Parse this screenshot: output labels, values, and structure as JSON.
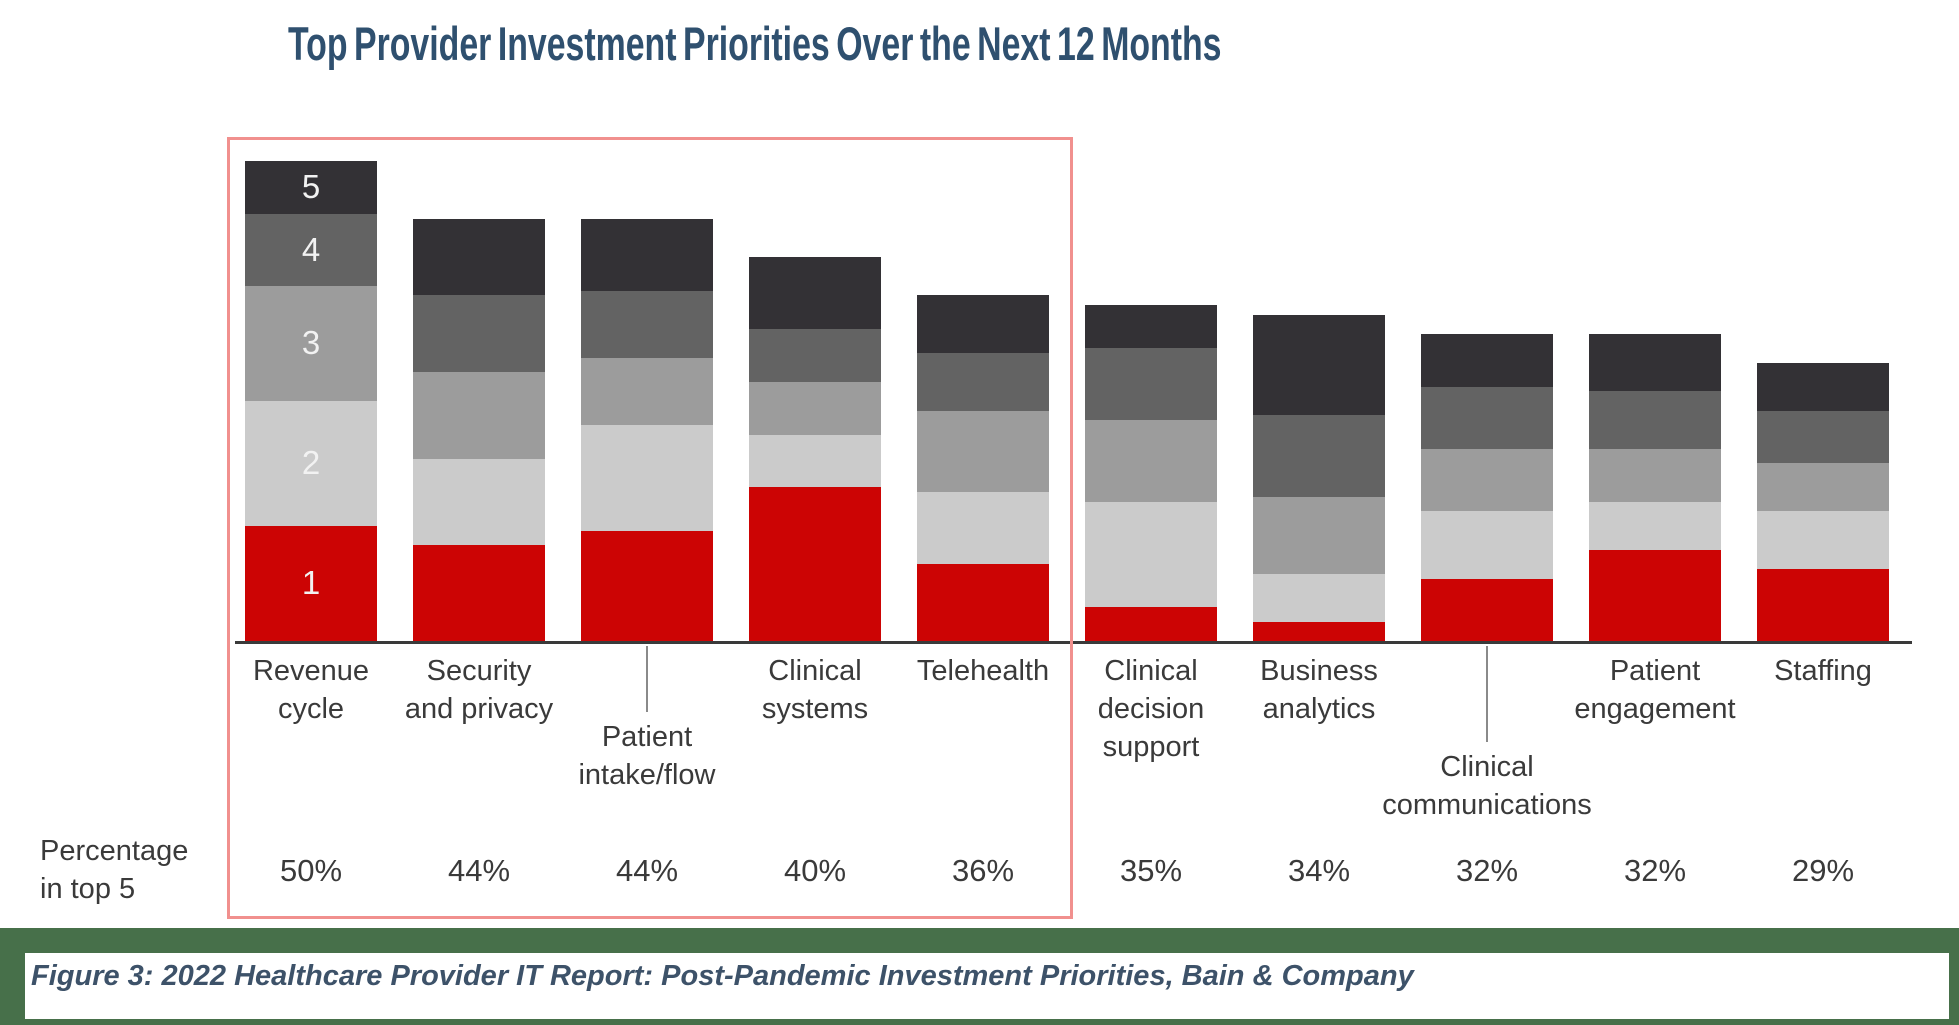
{
  "title": "Top Provider Investment Priorities Over the Next 12 Months",
  "caption": "Figure 3:  2022 Healthcare Provider IT Report: Post-Pandemic Investment Priorities, Bain & Company",
  "row_label": {
    "line1": "Percentage",
    "line2": "in top 5"
  },
  "colors": {
    "title_blue": "#2F506F",
    "caption_blue": "#3D5269",
    "footer_green": "#47704A",
    "box_pink": "#F1908E",
    "axis_gray": "#3A3A3A",
    "text_gray": "#3A3A3A",
    "rank1_red": "#CC0404",
    "rank2_light_gray": "#CBCBCB",
    "rank3_mid_gray": "#9C9C9C",
    "rank4_dark_gray": "#636363",
    "rank5_charcoal": "#333135"
  },
  "chart_data": {
    "type": "bar",
    "stacked": true,
    "title": "Top Provider Investment Priorities Over the Next 12 Months",
    "unit": "percent of respondents ranking item in their top 5 (segments = rank 1 at bottom through rank 5 at top)",
    "legend_position": "in-bar numbers on first column (1-5)",
    "grid": false,
    "categories": [
      "Revenue cycle",
      "Security and privacy",
      "Patient intake/flow",
      "Clinical systems",
      "Telehealth",
      "Clinical decision support",
      "Business analytics",
      "Clinical communications",
      "Patient engagement",
      "Staffing"
    ],
    "totals_pct": [
      50,
      44,
      44,
      40,
      36,
      35,
      34,
      32,
      32,
      29
    ],
    "totals_labels": [
      "50%",
      "44%",
      "44%",
      "40%",
      "36%",
      "35%",
      "34%",
      "32%",
      "32%",
      "29%"
    ],
    "series": [
      {
        "name": "Ranked 1 (top priority)",
        "color": "#CC0404",
        "values": [
          12,
          10,
          11.5,
          16,
          8,
          3.5,
          2,
          6.5,
          9.5,
          7.5
        ]
      },
      {
        "name": "Ranked 2",
        "color": "#CBCBCB",
        "values": [
          13,
          9,
          11,
          5.5,
          7.5,
          11,
          5,
          7,
          5,
          6
        ]
      },
      {
        "name": "Ranked 3",
        "color": "#9C9C9C",
        "values": [
          12,
          9,
          7,
          5.5,
          8.5,
          8.5,
          8,
          6.5,
          5.5,
          5
        ]
      },
      {
        "name": "Ranked 4",
        "color": "#636363",
        "values": [
          7.5,
          8,
          7,
          5.5,
          6,
          7.5,
          8.5,
          6.5,
          6,
          5.5
        ]
      },
      {
        "name": "Ranked 5",
        "color": "#333135",
        "values": [
          5.5,
          8,
          7.5,
          7.5,
          6,
          4.5,
          10.5,
          5.5,
          6,
          5
        ]
      }
    ],
    "rank_numbers_on_first_bar": [
      "1",
      "2",
      "3",
      "4",
      "5"
    ],
    "highlight_box": "red outline around the five highest-priority categories (Revenue cycle through Telehealth) including their percentages",
    "category_labels": [
      {
        "lines": [
          "Revenue",
          "cycle"
        ],
        "drop": 0,
        "connector": false
      },
      {
        "lines": [
          "Security",
          "and privacy"
        ],
        "drop": 0,
        "connector": false
      },
      {
        "lines": [
          "Patient",
          "intake/flow"
        ],
        "drop": 66,
        "connector": true
      },
      {
        "lines": [
          "Clinical",
          "systems"
        ],
        "drop": 0,
        "connector": false
      },
      {
        "lines": [
          "Telehealth"
        ],
        "drop": 0,
        "connector": false
      },
      {
        "lines": [
          "Clinical",
          "decision",
          "support"
        ],
        "drop": 0,
        "connector": false
      },
      {
        "lines": [
          "Business",
          "analytics"
        ],
        "drop": 0,
        "connector": false
      },
      {
        "lines": [
          "Clinical",
          "communications"
        ],
        "drop": 96,
        "connector": true
      },
      {
        "lines": [
          "Patient",
          "engagement"
        ],
        "drop": 0,
        "connector": false
      },
      {
        "lines": [
          "Staffing"
        ],
        "drop": 0,
        "connector": false
      }
    ]
  }
}
